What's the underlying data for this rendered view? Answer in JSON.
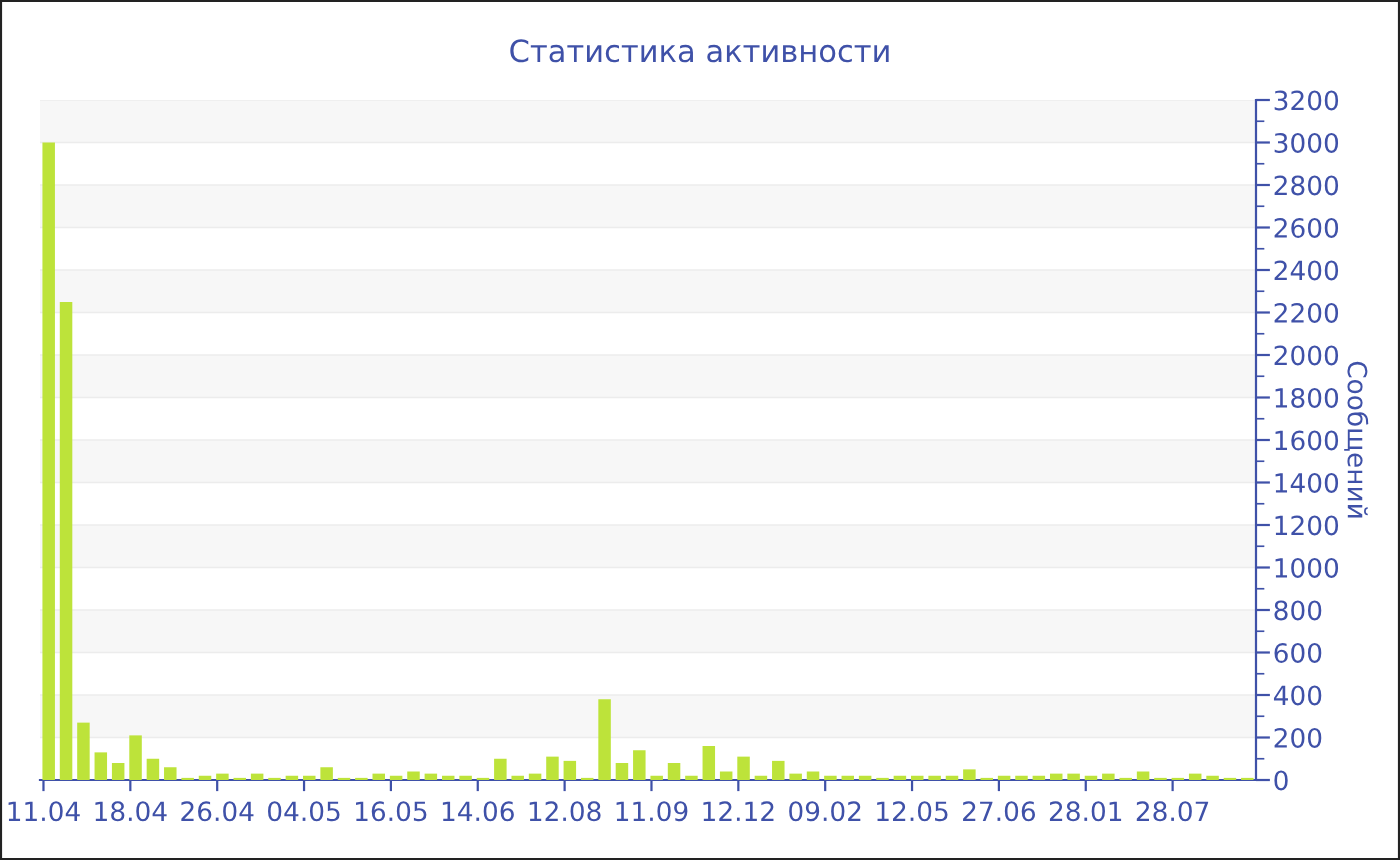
{
  "chart_data": {
    "type": "bar",
    "title": "Статистика активности",
    "ylabel": "Сообщений",
    "categories": [
      "11.04",
      null,
      null,
      null,
      null,
      "18.04",
      null,
      null,
      null,
      null,
      "26.04",
      null,
      null,
      null,
      null,
      "04.05",
      null,
      null,
      null,
      null,
      "16.05",
      null,
      null,
      null,
      null,
      "14.06",
      null,
      null,
      null,
      null,
      "12.08",
      null,
      null,
      null,
      null,
      "11.09",
      null,
      null,
      null,
      null,
      "12.12",
      null,
      null,
      null,
      null,
      "09.02",
      null,
      null,
      null,
      null,
      "12.05",
      null,
      null,
      null,
      null,
      "27.06",
      null,
      null,
      null,
      null,
      "28.01",
      null,
      null,
      null,
      null,
      "28.07",
      null,
      null,
      null,
      null
    ],
    "values": [
      3000,
      2250,
      270,
      130,
      80,
      210,
      100,
      60,
      10,
      20,
      30,
      10,
      30,
      10,
      20,
      20,
      60,
      10,
      10,
      30,
      20,
      40,
      30,
      20,
      20,
      10,
      100,
      20,
      30,
      110,
      90,
      10,
      380,
      80,
      140,
      20,
      80,
      20,
      160,
      40,
      110,
      20,
      90,
      30,
      40,
      20,
      20,
      20,
      10,
      20,
      20,
      20,
      20,
      50,
      10,
      20,
      20,
      20,
      30,
      30,
      20,
      30,
      10,
      40,
      10,
      10,
      30,
      20,
      10,
      10
    ],
    "color": "#bde33a",
    "ylim": [
      0,
      3200
    ],
    "yticks": [
      0,
      200,
      400,
      600,
      800,
      1000,
      1200,
      1400,
      1600,
      1800,
      2000,
      2200,
      2400,
      2600,
      2800,
      3000,
      3200
    ],
    "grid": "y",
    "legend": false
  }
}
